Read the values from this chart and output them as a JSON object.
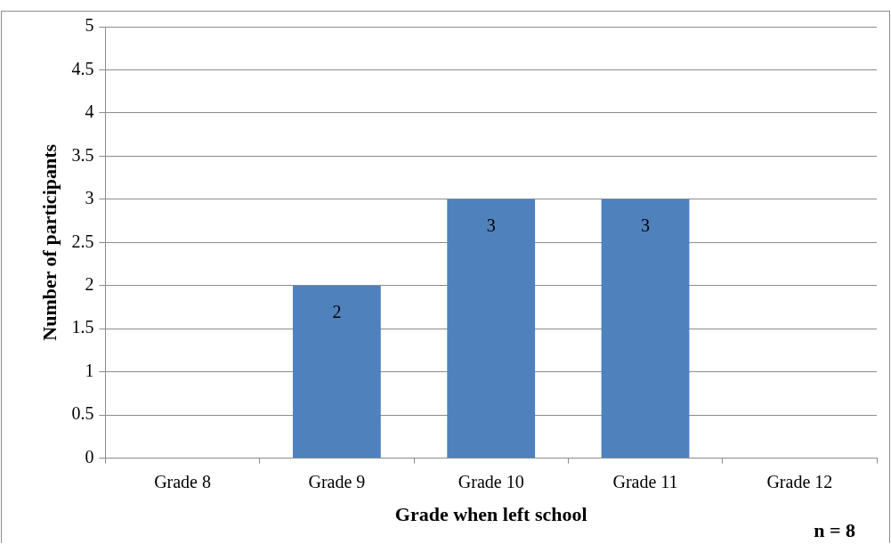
{
  "chart_data": {
    "type": "bar",
    "categories": [
      "Grade 8",
      "Grade 9",
      "Grade 10",
      "Grade 11",
      "Grade 12"
    ],
    "values": [
      0,
      2,
      3,
      3,
      0
    ],
    "value_labels": [
      null,
      "2",
      "3",
      "3",
      null
    ],
    "color": "#4f81bd",
    "ylim": [
      0,
      5
    ],
    "yticks": [
      0,
      0.5,
      1,
      1.5,
      2,
      2.5,
      3,
      3.5,
      4,
      4.5,
      5
    ],
    "grid": "y",
    "legend": false,
    "xlabel": "Grade when left school",
    "ylabel": "Number of participants",
    "annotations": [
      "n = 8"
    ]
  }
}
